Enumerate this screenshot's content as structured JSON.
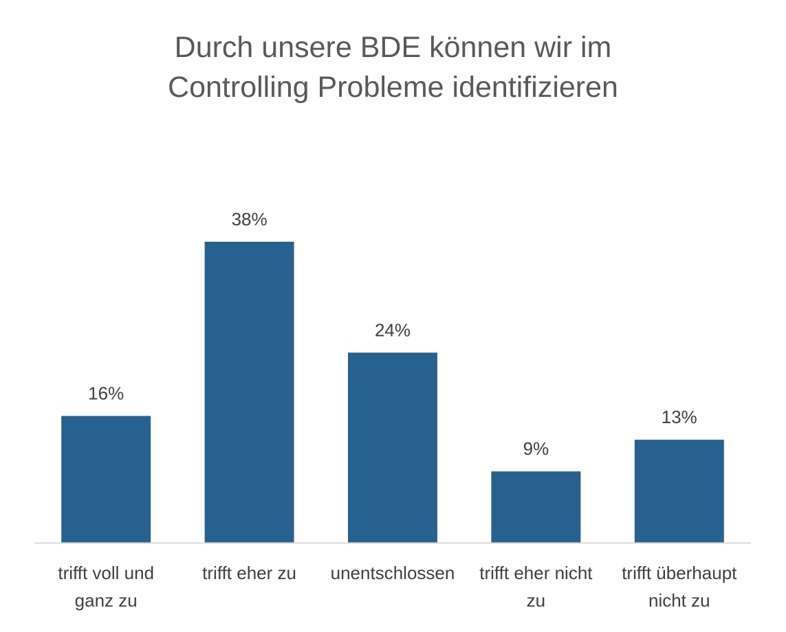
{
  "chart_data": {
    "type": "bar",
    "title": "Durch unsere BDE können wir im\nControlling Probleme identifizieren",
    "categories": [
      "trifft voll und\nganz zu",
      "trifft eher zu",
      "unentschlossen",
      "trifft eher nicht\nzu",
      "trifft überhaupt\nnicht zu"
    ],
    "values": [
      16,
      38,
      24,
      9,
      13
    ],
    "value_labels": [
      "16%",
      "38%",
      "24%",
      "9%",
      "13%"
    ],
    "unit": "%",
    "xlabel": "",
    "ylabel": "",
    "ylim": [
      0,
      40
    ],
    "grid": false,
    "legend": "none",
    "colors": {
      "bar": "#276190",
      "axis": "#d9d9d9",
      "text": "#404040",
      "title": "#595959"
    }
  }
}
